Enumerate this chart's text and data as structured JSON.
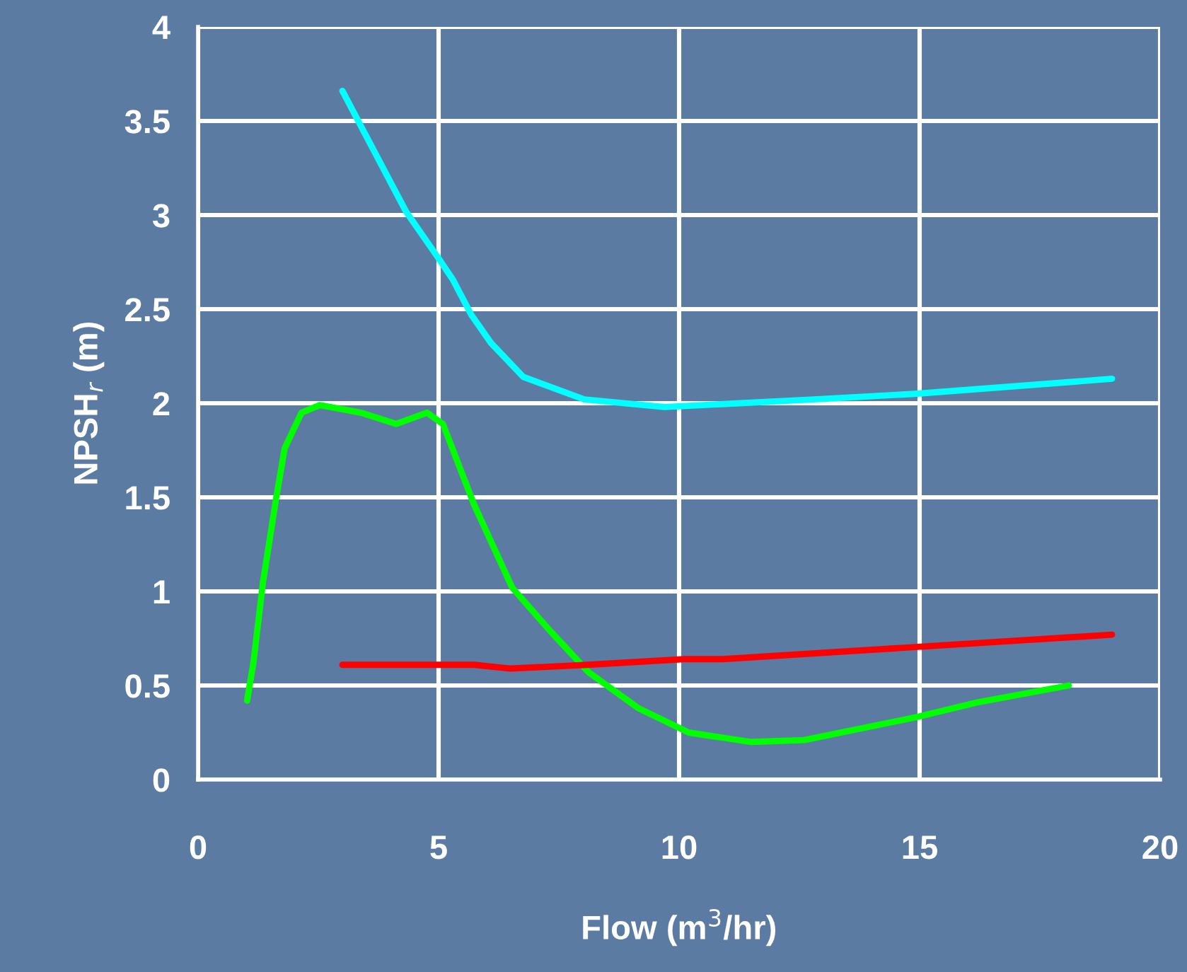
{
  "chart_data": {
    "type": "line",
    "xlabel": "Flow (m$^{3}$/hr)",
    "ylabel": "NPSH$_{r}$ (m)",
    "xlim": [
      0,
      20
    ],
    "xticks": [
      0,
      5,
      10,
      15,
      20
    ],
    "ylim": [
      0,
      4
    ],
    "yticks": [
      0,
      0.5,
      1,
      1.5,
      2,
      2.5,
      3,
      3.5,
      4
    ],
    "grid": true,
    "marker": "none",
    "line_style": "solid",
    "series": [
      {
        "color": "#00ffff",
        "x": [
          3.0,
          4.32,
          5.0,
          5.29,
          5.68,
          6.09,
          6.76,
          8.03,
          9.7,
          12.8,
          14.9,
          19.0
        ],
        "values": [
          3.66,
          3.02,
          2.77,
          2.66,
          2.47,
          2.32,
          2.14,
          2.02,
          1.98,
          2.02,
          2.05,
          2.13
        ]
      },
      {
        "color": "#00ff00",
        "x": [
          1.02,
          1.15,
          1.35,
          1.62,
          1.8,
          2.15,
          2.53,
          3.38,
          4.12,
          4.76,
          5.09,
          5.74,
          6.53,
          7.32,
          8.12,
          9.15,
          10.2,
          11.5,
          12.6,
          14.9,
          16.2,
          18.1
        ],
        "values": [
          0.42,
          0.62,
          1.05,
          1.49,
          1.76,
          1.95,
          1.99,
          1.95,
          1.89,
          1.95,
          1.89,
          1.46,
          1.02,
          0.79,
          0.57,
          0.38,
          0.25,
          0.2,
          0.21,
          0.33,
          0.41,
          0.5
        ]
      },
      {
        "color": "#ff0000",
        "x": [
          3.0,
          5.74,
          6.5,
          8.1,
          10.1,
          10.9,
          19.0
        ],
        "values": [
          0.61,
          0.61,
          0.59,
          0.61,
          0.64,
          0.64,
          0.77
        ]
      }
    ]
  }
}
